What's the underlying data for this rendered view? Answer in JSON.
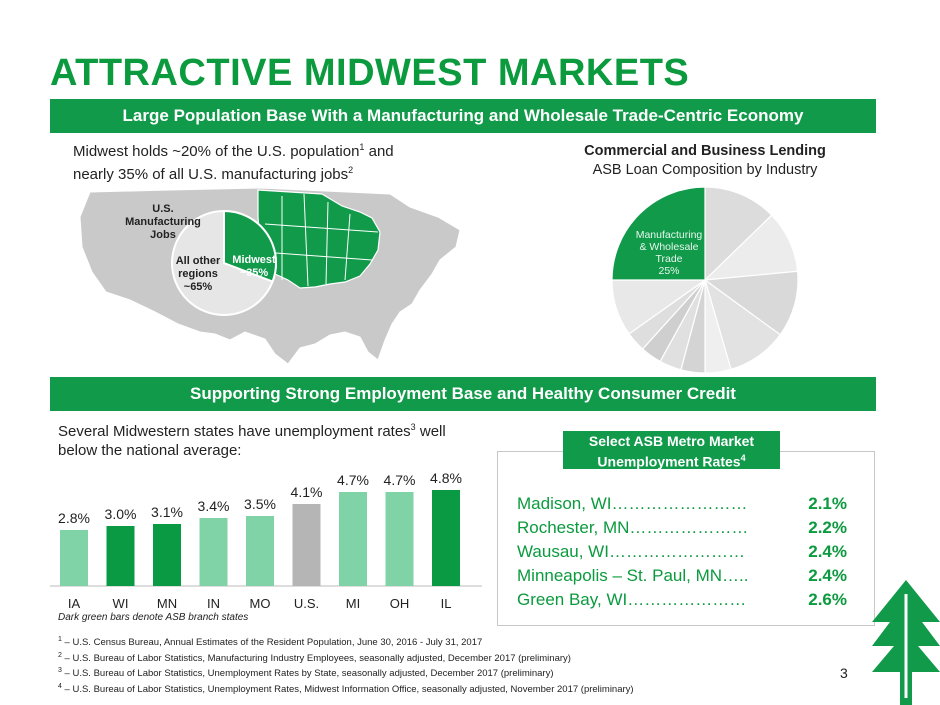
{
  "title": "ATTRACTIVE MIDWEST MARKETS",
  "band1": "Large Population Base With a Manufacturing and Wholesale Trade-Centric Economy",
  "intro1": {
    "part1": "Midwest holds ~20% of the U.S. population",
    "sup1": "1",
    "part2": " and nearly 35% of all U.S. manufacturing jobs",
    "sup2": "2"
  },
  "map": {
    "label_top": [
      "U.S.",
      "Manufacturing",
      "Jobs"
    ],
    "pie_other": [
      "All other",
      "regions",
      "~65%"
    ],
    "pie_midwest": [
      "Midwest",
      "~35%"
    ]
  },
  "clb": {
    "heading": "Commercial and Business Lending",
    "subheading": "ASB Loan Composition by Industry",
    "donut_label": [
      "Manufacturing",
      "& Wholesale",
      "Trade",
      "25%"
    ]
  },
  "band2": "Supporting Strong Employment Base and Healthy Consumer Credit",
  "intro2": {
    "part1": "Several Midwestern states have unemployment rates",
    "sup": "3",
    "part2": " well below the national average:"
  },
  "bar_note": "Dark green bars denote ASB branch states",
  "colors": {
    "dark": "#0a9a44",
    "light": "#7fd3a6",
    "gray": "#b5b5b5",
    "accent": "#0b9a3e"
  },
  "chart_data": {
    "type": "bar",
    "categories": [
      "IA",
      "WI",
      "MN",
      "IN",
      "MO",
      "U.S.",
      "MI",
      "OH",
      "IL"
    ],
    "values": [
      2.8,
      3.0,
      3.1,
      3.4,
      3.5,
      4.1,
      4.7,
      4.7,
      4.8
    ],
    "value_labels": [
      "2.8%",
      "3.0%",
      "3.1%",
      "3.4%",
      "3.5%",
      "4.1%",
      "4.7%",
      "4.7%",
      "4.8%"
    ],
    "bar_colors": [
      "light",
      "dark",
      "dark",
      "light",
      "light",
      "gray",
      "light",
      "light",
      "dark"
    ],
    "ylim": [
      0,
      5
    ]
  },
  "metro": {
    "heading_line1": "Select ASB Metro Market",
    "heading_line2": "Unemployment Rates",
    "heading_sup": "4",
    "rows": [
      {
        "name": "Madison, WI……………………",
        "value": "2.1%"
      },
      {
        "name": "Rochester, MN…………………",
        "value": "2.2%"
      },
      {
        "name": "Wausau, WI……………………",
        "value": "2.4%"
      },
      {
        "name": "Minneapolis – St. Paul, MN…..",
        "value": "2.4%"
      },
      {
        "name": "Green Bay, WI…………………",
        "value": "2.6%"
      }
    ]
  },
  "footnotes": [
    {
      "sup": "1",
      "text": " – U.S. Census Bureau, Annual Estimates of the Resident Population, June 30, 2016 - July 31, 2017"
    },
    {
      "sup": "2",
      "text": " – U.S. Bureau of Labor Statistics, Manufacturing Industry Employees, seasonally adjusted, December 2017 (preliminary)"
    },
    {
      "sup": "3",
      "text": " – U.S. Bureau of Labor Statistics, Unemployment Rates by State, seasonally adjusted, December 2017 (preliminary)"
    },
    {
      "sup": "4",
      "text": " – U.S. Bureau of Labor Statistics, Unemployment Rates, Midwest Information Office, seasonally adjusted, November 2017 (preliminary)"
    }
  ],
  "page_number": "3"
}
